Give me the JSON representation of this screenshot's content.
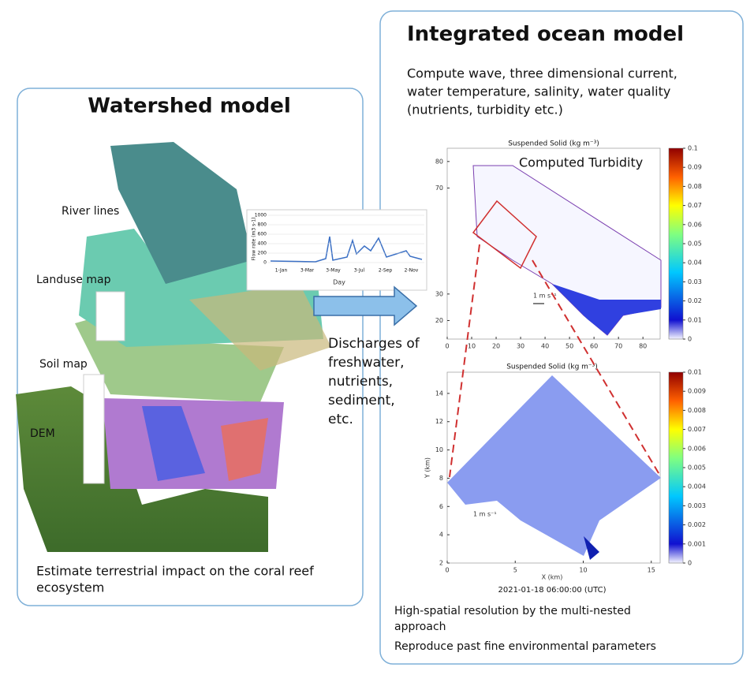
{
  "left_panel": {
    "title": "Watershed model",
    "layers": [
      "River lines",
      "Landuse map",
      "Soil map",
      "DEM"
    ],
    "caption_lines": [
      "Estimate terrestrial impact on the coral reef",
      "ecosystem"
    ]
  },
  "hydrograph": {
    "y_label": "Flow rate (m3 s-1)",
    "x_label": "Day",
    "ylim": [
      0,
      1000
    ],
    "yticks": [
      0,
      200,
      400,
      600,
      800,
      1000
    ],
    "categories": [
      "1-Jan",
      "3-Mar",
      "3-May",
      "3-Jul",
      "2-Sep",
      "2-Nov"
    ]
  },
  "arrow_text_lines": [
    "Discharges of",
    "freshwater,",
    "nutrients,",
    "sediment,",
    "etc."
  ],
  "right_panel": {
    "title": "Integrated ocean model",
    "description_lines": [
      "Compute wave, three dimensional current,",
      "water temperature, salinity, water quality",
      "(nutrients, turbidity etc.)"
    ],
    "caption1_lines": [
      "High-spatial resolution by the multi-nested",
      "approach"
    ],
    "caption2": "Reproduce past fine environmental parameters"
  },
  "map1": {
    "title": "Suspended Solid (kg m⁻³)",
    "label": "Computed Turbidity",
    "vector_scale": "1 m s⁻¹",
    "xlim": [
      0,
      88
    ],
    "xticks": [
      0,
      10,
      20,
      30,
      40,
      50,
      60,
      70,
      80
    ],
    "ylim": [
      13,
      85
    ],
    "yticks": [
      20,
      30,
      70,
      80
    ],
    "clim": [
      0,
      0.1
    ],
    "cticks": [
      0,
      0.01,
      0.02,
      0.03,
      0.04,
      0.05,
      0.06,
      0.07,
      0.08,
      0.09,
      0.1
    ]
  },
  "map2": {
    "title": "Suspended Solid (kg m⁻³)",
    "vector_scale": "1 m s⁻¹",
    "x_label": "X (km)",
    "y_label": "Y (km)",
    "timestamp": "2021-01-18 06:00:00 (UTC)",
    "xlim": [
      0,
      16
    ],
    "xticks": [
      0,
      5,
      10,
      15
    ],
    "ylim": [
      2,
      15.5
    ],
    "yticks": [
      2,
      4,
      6,
      8,
      10,
      12,
      14
    ],
    "clim": [
      0,
      0.01
    ],
    "cticks": [
      0,
      0.001,
      0.002,
      0.003,
      0.004,
      0.005,
      0.006,
      0.007,
      0.008,
      0.009,
      0.01
    ]
  }
}
